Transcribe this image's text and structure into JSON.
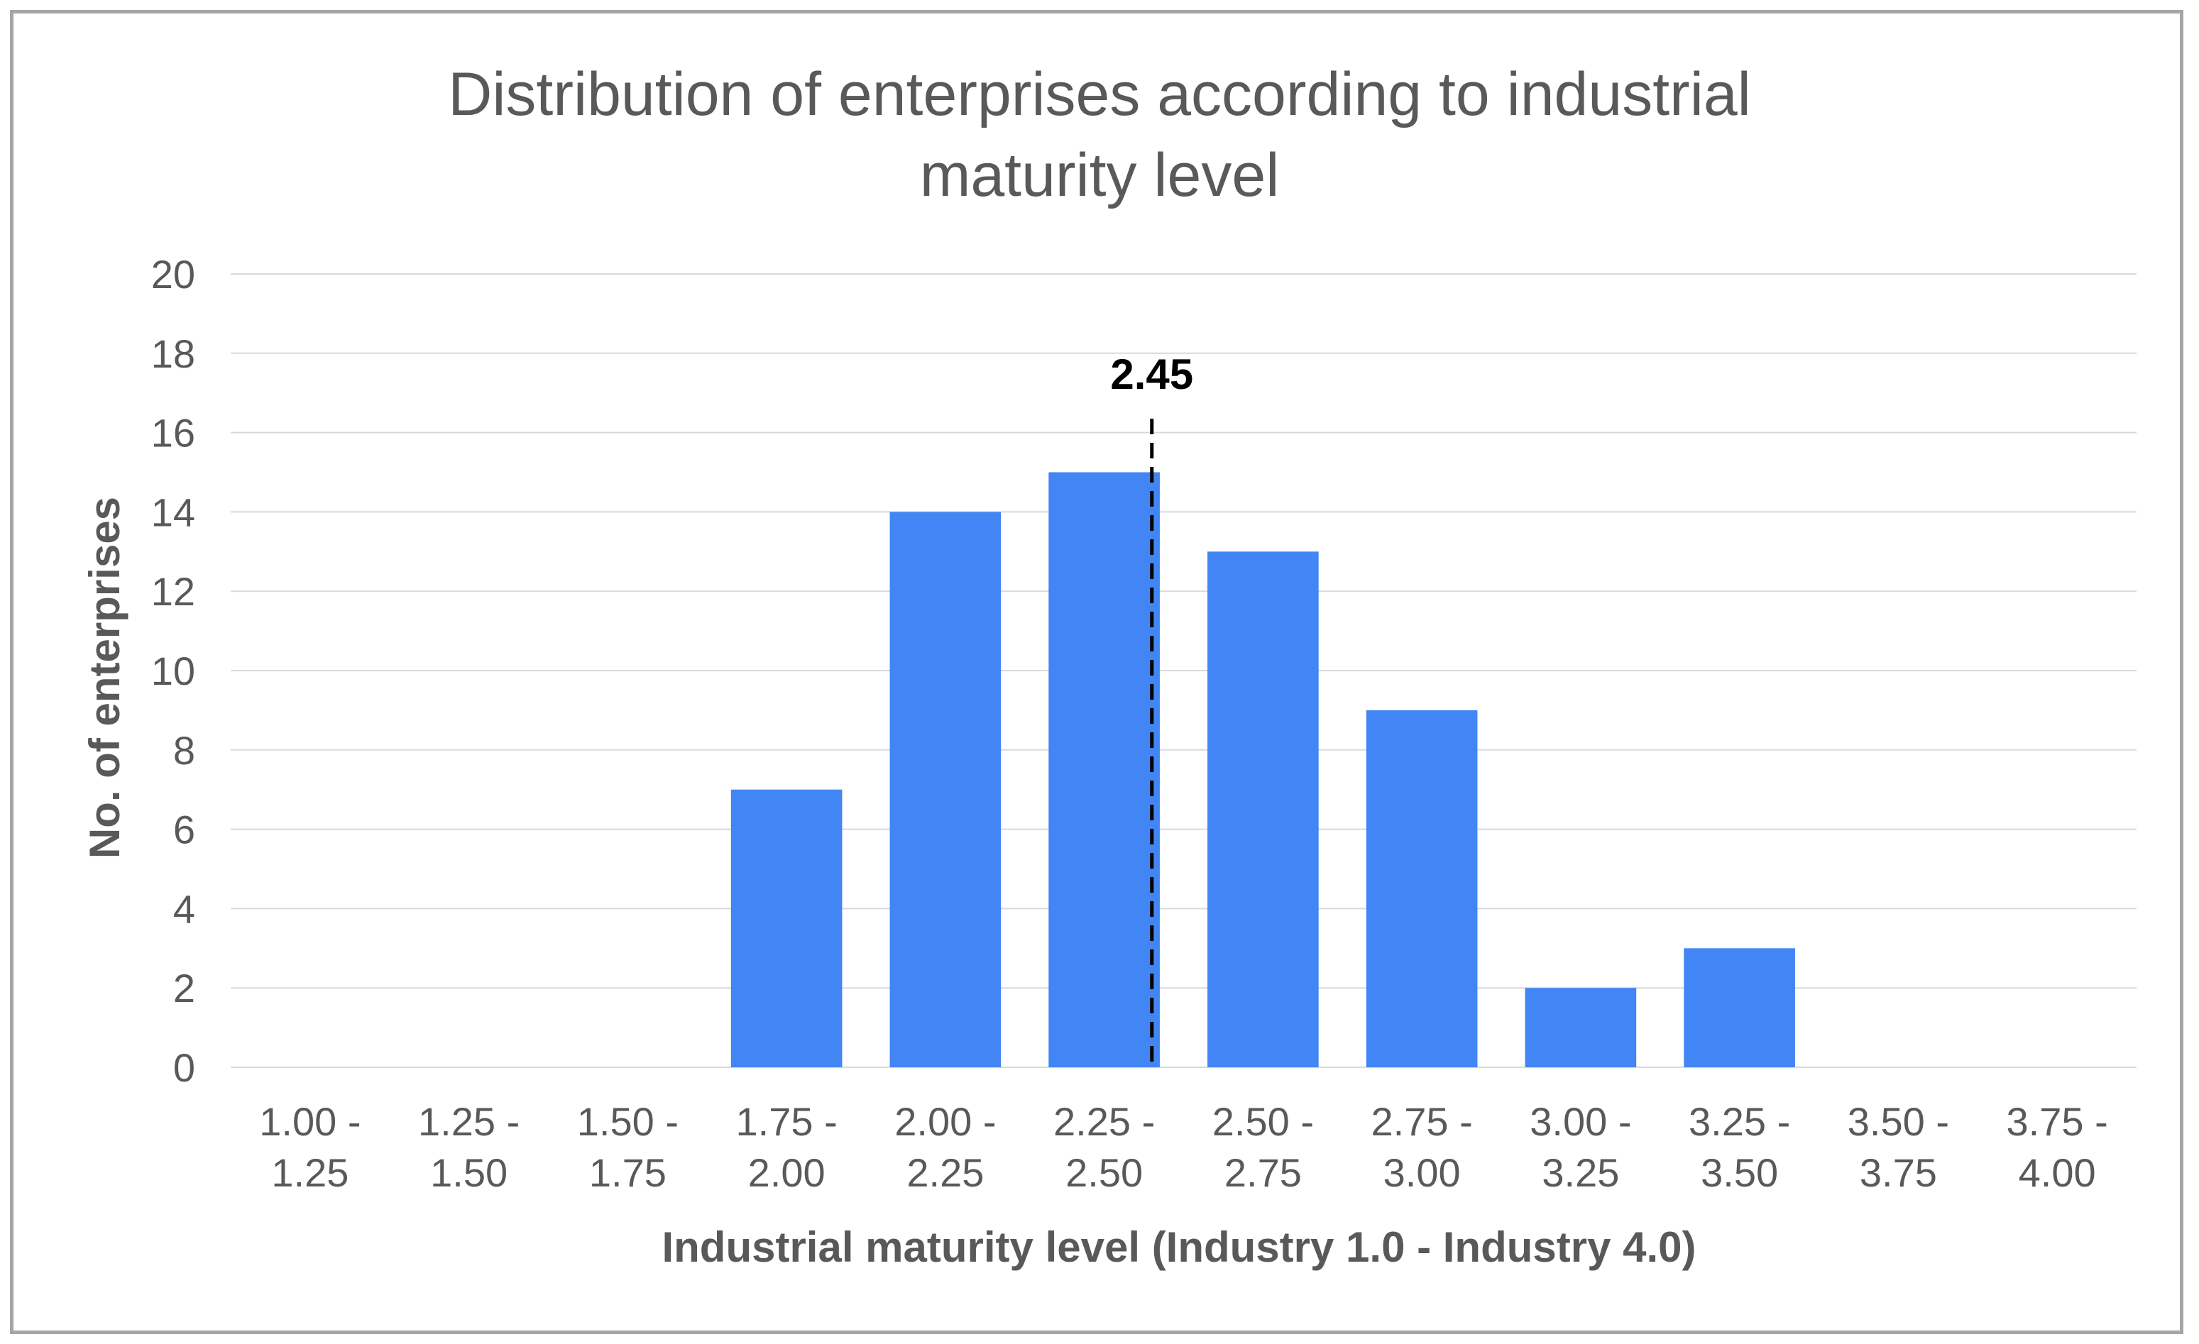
{
  "chart_data": {
    "type": "bar",
    "title": "Distribution of enterprises according to industrial maturity level",
    "title_lines": [
      "Distribution of enterprises according to industrial",
      "maturity level"
    ],
    "xlabel": "Industrial maturity level (Industry 1.0 - Industry 4.0)",
    "ylabel": "No. of enterprises",
    "categories": [
      [
        "1.00 -",
        "1.25"
      ],
      [
        "1.25 -",
        "1.50"
      ],
      [
        "1.50 -",
        "1.75"
      ],
      [
        "1.75 -",
        "2.00"
      ],
      [
        "2.00 -",
        "2.25"
      ],
      [
        "2.25 -",
        "2.50"
      ],
      [
        "2.50 -",
        "2.75"
      ],
      [
        "2.75 -",
        "3.00"
      ],
      [
        "3.00 -",
        "3.25"
      ],
      [
        "3.25 -",
        "3.50"
      ],
      [
        "3.50 -",
        "3.75"
      ],
      [
        "3.75 -",
        "4.00"
      ]
    ],
    "values": [
      0,
      0,
      0,
      7,
      14,
      15,
      13,
      9,
      2,
      3,
      0,
      0
    ],
    "ylim": [
      0,
      20
    ],
    "yticks": [
      0,
      2,
      4,
      6,
      8,
      10,
      12,
      14,
      16,
      18,
      20
    ],
    "grid": true,
    "bar_color": "#4285f4",
    "annotation": {
      "label": "2.45",
      "x_value": 2.45,
      "line_style": "dashed",
      "color": "#000000"
    }
  }
}
